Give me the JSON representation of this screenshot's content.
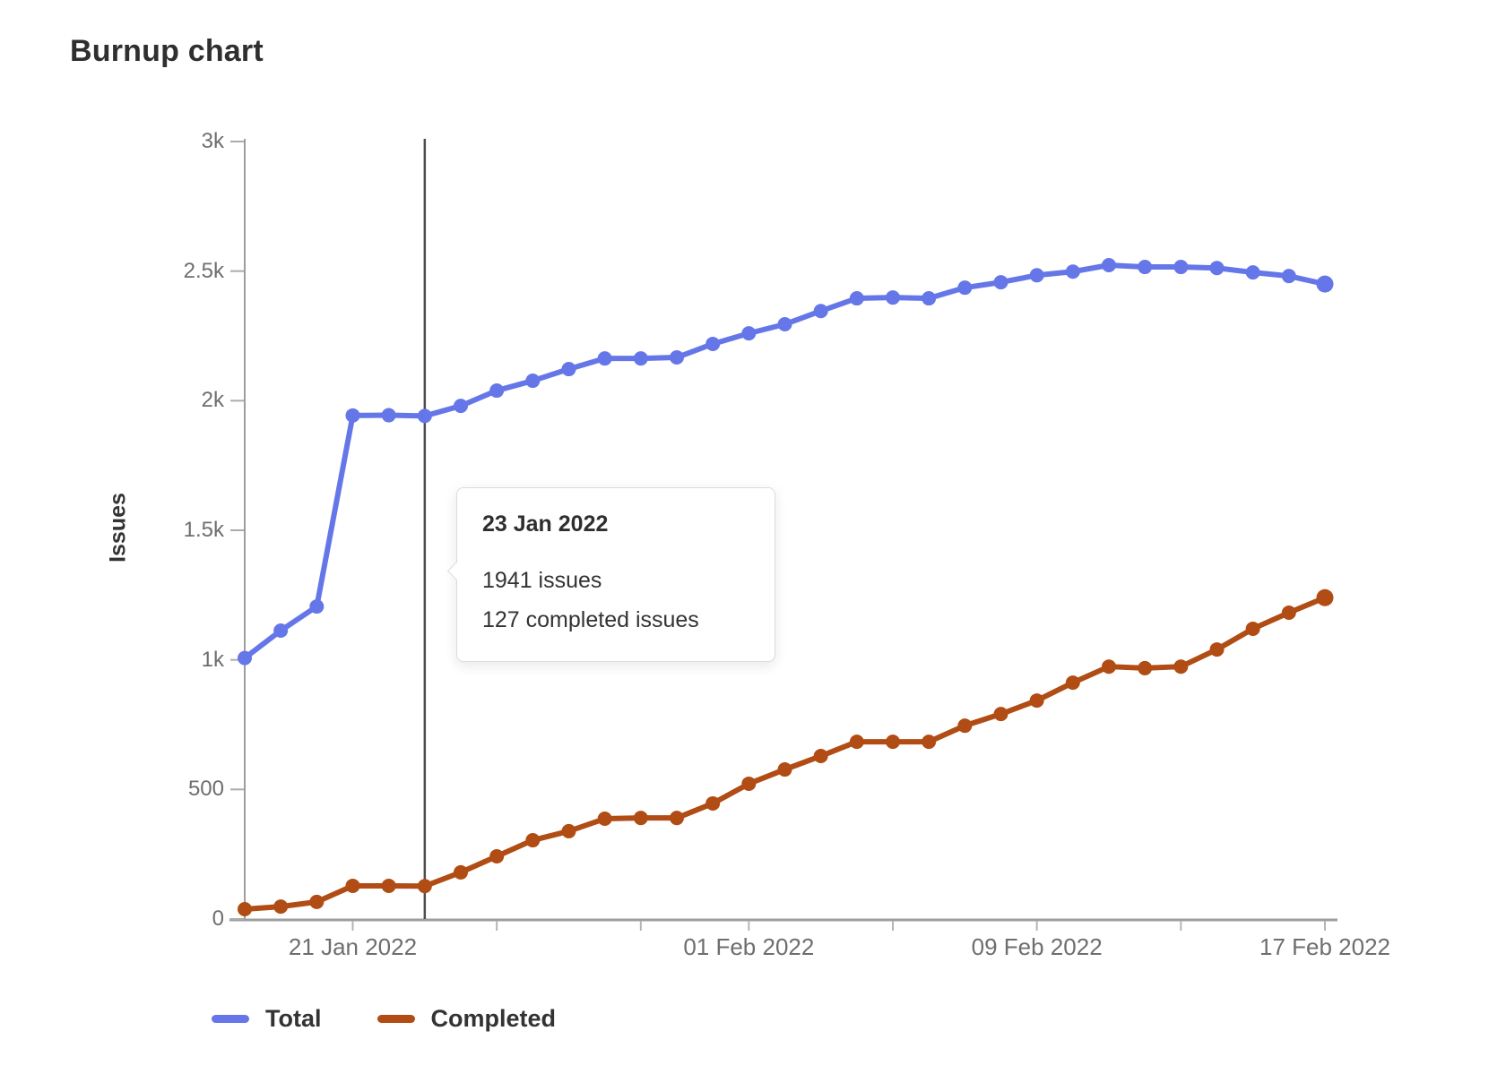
{
  "title": "Burnup chart",
  "y_axis": {
    "label": "Issues",
    "ticks": [
      {
        "label": "3k",
        "value": 3000
      },
      {
        "label": "2.5k",
        "value": 2500
      },
      {
        "label": "2k",
        "value": 2000
      },
      {
        "label": "1.5k",
        "value": 1500
      },
      {
        "label": "1k",
        "value": 1000
      },
      {
        "label": "500",
        "value": 500
      },
      {
        "label": "0",
        "value": 0
      }
    ]
  },
  "x_axis": {
    "ticks": [
      {
        "index": 3,
        "label": "21 Jan 2022"
      },
      {
        "index": 7,
        "label": ""
      },
      {
        "index": 11,
        "label": ""
      },
      {
        "index": 14,
        "label": "01 Feb 2022"
      },
      {
        "index": 18,
        "label": ""
      },
      {
        "index": 22,
        "label": "09 Feb 2022"
      },
      {
        "index": 26,
        "label": ""
      },
      {
        "index": 30,
        "label": "17 Feb 2022"
      }
    ]
  },
  "hover": {
    "index": 5,
    "date": "23 Jan 2022"
  },
  "tooltip": {
    "date": "23 Jan 2022",
    "total_text": "1941 issues",
    "completed_text": "127 completed issues"
  },
  "legend": {
    "items": [
      {
        "label": "Total",
        "color": "#6577e8"
      },
      {
        "label": "Completed",
        "color": "#b04c14"
      }
    ]
  },
  "chart_data": {
    "type": "line",
    "title": "Burnup chart",
    "xlabel": "",
    "ylabel": "Issues",
    "ylim": [
      0,
      3000
    ],
    "grid": false,
    "legend_position": "bottom",
    "x": [
      "18 Jan 2022",
      "19 Jan 2022",
      "20 Jan 2022",
      "21 Jan 2022",
      "22 Jan 2022",
      "23 Jan 2022",
      "24 Jan 2022",
      "25 Jan 2022",
      "26 Jan 2022",
      "27 Jan 2022",
      "28 Jan 2022",
      "29 Jan 2022",
      "30 Jan 2022",
      "31 Jan 2022",
      "01 Feb 2022",
      "02 Feb 2022",
      "03 Feb 2022",
      "04 Feb 2022",
      "05 Feb 2022",
      "06 Feb 2022",
      "07 Feb 2022",
      "08 Feb 2022",
      "09 Feb 2022",
      "10 Feb 2022",
      "11 Feb 2022",
      "12 Feb 2022",
      "13 Feb 2022",
      "14 Feb 2022",
      "15 Feb 2022",
      "16 Feb 2022",
      "17 Feb 2022"
    ],
    "series": [
      {
        "name": "Total",
        "color": "#6577e8",
        "values": [
          1007,
          1113,
          1206,
          1943,
          1944,
          1941,
          1980,
          2039,
          2077,
          2122,
          2163,
          2163,
          2167,
          2219,
          2260,
          2295,
          2346,
          2395,
          2398,
          2395,
          2436,
          2457,
          2484,
          2498,
          2523,
          2516,
          2516,
          2512,
          2495,
          2481,
          2450
        ]
      },
      {
        "name": "Completed",
        "color": "#b04c14",
        "values": [
          38,
          48,
          66,
          128,
          128,
          127,
          180,
          242,
          304,
          339,
          387,
          390,
          390,
          446,
          522,
          577,
          629,
          684,
          684,
          684,
          746,
          791,
          843,
          912,
          974,
          968,
          974,
          1040,
          1120,
          1182,
          1240
        ]
      }
    ]
  }
}
